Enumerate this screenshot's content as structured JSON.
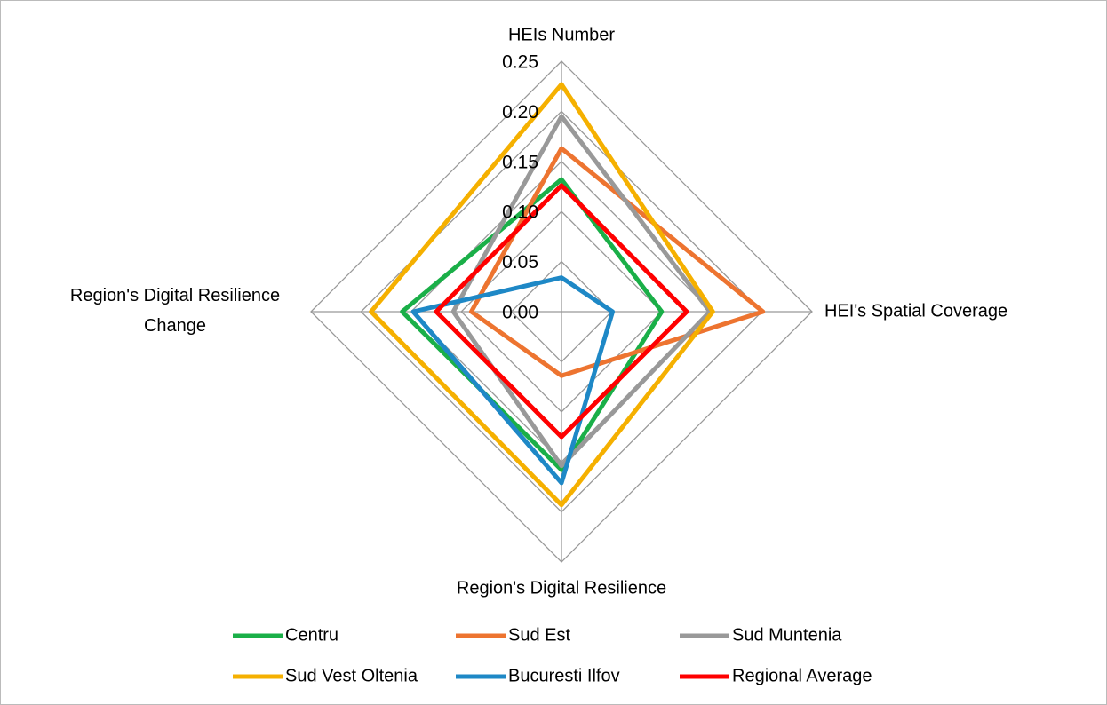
{
  "chart_data": {
    "type": "radar",
    "categories": [
      "HEIs Number",
      "HEI's Spatial Coverage",
      "Region's Digital Resilience",
      "Region's Digital Resilience Change"
    ],
    "ylim": [
      0,
      0.25
    ],
    "yticks": [
      {
        "value": 0,
        "label": "0.00"
      },
      {
        "value": 0.05,
        "label": "0.05"
      },
      {
        "value": 0.1,
        "label": "0.10"
      },
      {
        "value": 0.15,
        "label": "0.15"
      },
      {
        "value": 0.2,
        "label": "0.20"
      },
      {
        "value": 0.25,
        "label": "0.25"
      }
    ],
    "grid": true,
    "legend": "bottom",
    "series": [
      {
        "name": "Centru",
        "color": "#1aaf48",
        "values": [
          0.132,
          0.1,
          0.158,
          0.159
        ]
      },
      {
        "name": "Sud Est",
        "color": "#ed7430",
        "values": [
          0.163,
          0.201,
          0.064,
          0.09
        ]
      },
      {
        "name": "Sud Muntenia",
        "color": "#999999",
        "values": [
          0.195,
          0.148,
          0.154,
          0.108
        ]
      },
      {
        "name": "Sud Vest Oltenia",
        "color": "#f5b000",
        "values": [
          0.227,
          0.151,
          0.193,
          0.19
        ]
      },
      {
        "name": "Bucuresti Ilfov",
        "color": "#1e88c6",
        "values": [
          0.034,
          0.051,
          0.171,
          0.148
        ]
      },
      {
        "name": "Regional Average",
        "color": "#ff0000",
        "values": [
          0.126,
          0.125,
          0.125,
          0.125
        ]
      }
    ]
  }
}
